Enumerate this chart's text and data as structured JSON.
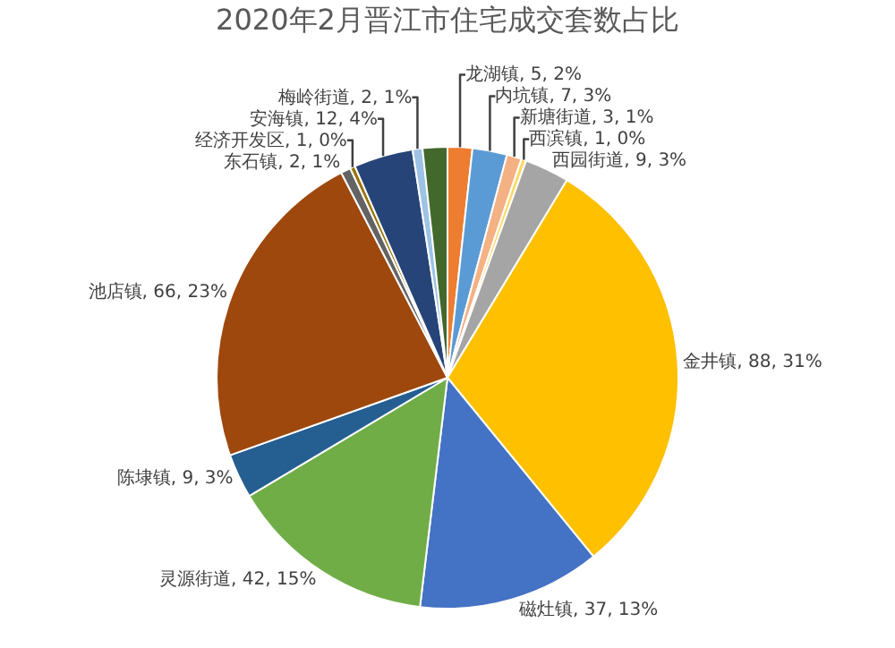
{
  "chart_data": {
    "type": "pie",
    "title": "2020年2月晋江市住宅成交套数占比",
    "categories": [
      "龙湖镇",
      "内坑镇",
      "新塘街道",
      "西滨镇",
      "西园街道",
      "金井镇",
      "磁灶镇",
      "灵源街道",
      "陈埭镇",
      "池店镇",
      "东石镇",
      "经济开发区",
      "安海镇",
      "梅岭街道",
      null
    ],
    "values": [
      5,
      7,
      3,
      1,
      9,
      88,
      37,
      42,
      9,
      66,
      2,
      1,
      12,
      2,
      5
    ],
    "value_labels": [
      "5, 2%",
      "7, 3%",
      "3, 1%",
      "1, 0%",
      "9, 3%",
      "88, 31%",
      "37, 13%",
      "42, 15%",
      "9, 3%",
      "66, 23%",
      "2, 1%",
      "1, 0%",
      "12, 4%",
      "2, 1%",
      null
    ],
    "colors": [
      "#ed7d31",
      "#5b9bd5",
      "#f4b183",
      "#ffd966",
      "#a5a5a5",
      "#ffc000",
      "#4472c4",
      "#70ad47",
      "#255e91",
      "#9e480e",
      "#636363",
      "#997300",
      "#264478",
      "#9dc3e6",
      "#43682b"
    ]
  }
}
